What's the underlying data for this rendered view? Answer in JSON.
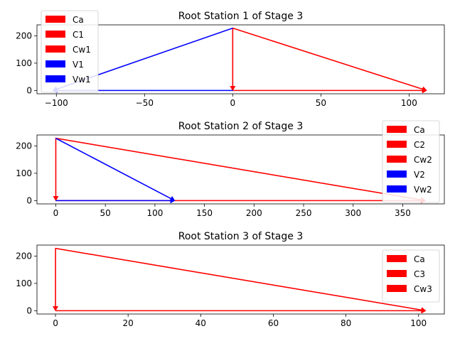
{
  "chart_data": [
    {
      "type": "line",
      "title": "Root Station 1 of Stage 3",
      "xlim": [
        -111,
        120
      ],
      "ylim": [
        -12,
        240
      ],
      "xticks": [
        -100,
        -50,
        0,
        50,
        100
      ],
      "yticks": [
        0,
        100,
        200
      ],
      "legend_position": "upper-left",
      "series": [
        {
          "name": "Ca",
          "color": "#ff0000",
          "start": [
            0,
            228
          ],
          "end": [
            0,
            0
          ]
        },
        {
          "name": "C1",
          "color": "#ff0000",
          "start": [
            0,
            228
          ],
          "end": [
            110,
            0
          ]
        },
        {
          "name": "Cw1",
          "color": "#ff0000",
          "start": [
            0,
            0
          ],
          "end": [
            110,
            0
          ]
        },
        {
          "name": "V1",
          "color": "#0000ff",
          "start": [
            0,
            228
          ],
          "end": [
            -102,
            0
          ]
        },
        {
          "name": "Vw1",
          "color": "#0000ff",
          "start": [
            0,
            0
          ],
          "end": [
            -102,
            0
          ]
        }
      ]
    },
    {
      "type": "line",
      "title": "Root Station 2 of Stage 3",
      "xlim": [
        -19,
        392
      ],
      "ylim": [
        -12,
        240
      ],
      "xticks": [
        0,
        50,
        100,
        150,
        200,
        250,
        300,
        350
      ],
      "yticks": [
        0,
        100,
        200
      ],
      "legend_position": "upper-right",
      "series": [
        {
          "name": "Ca",
          "color": "#ff0000",
          "start": [
            0,
            228
          ],
          "end": [
            0,
            0
          ]
        },
        {
          "name": "C2",
          "color": "#ff0000",
          "start": [
            0,
            228
          ],
          "end": [
            373,
            0
          ]
        },
        {
          "name": "Cw2",
          "color": "#ff0000",
          "start": [
            0,
            0
          ],
          "end": [
            373,
            0
          ]
        },
        {
          "name": "V2",
          "color": "#0000ff",
          "start": [
            0,
            228
          ],
          "end": [
            120,
            0
          ]
        },
        {
          "name": "Vw2",
          "color": "#0000ff",
          "start": [
            0,
            0
          ],
          "end": [
            120,
            0
          ]
        }
      ]
    },
    {
      "type": "line",
      "title": "Root Station 3 of Stage 3",
      "xlim": [
        -5.1,
        107.1
      ],
      "ylim": [
        -12,
        240
      ],
      "xticks": [
        0,
        20,
        40,
        60,
        80,
        100
      ],
      "yticks": [
        0,
        100,
        200
      ],
      "legend_position": "upper-right",
      "series": [
        {
          "name": "Ca",
          "color": "#ff0000",
          "start": [
            0,
            228
          ],
          "end": [
            0,
            0
          ]
        },
        {
          "name": "C3",
          "color": "#ff0000",
          "start": [
            0,
            228
          ],
          "end": [
            102,
            0
          ]
        },
        {
          "name": "Cw3",
          "color": "#ff0000",
          "start": [
            0,
            0
          ],
          "end": [
            102,
            0
          ]
        }
      ]
    }
  ]
}
